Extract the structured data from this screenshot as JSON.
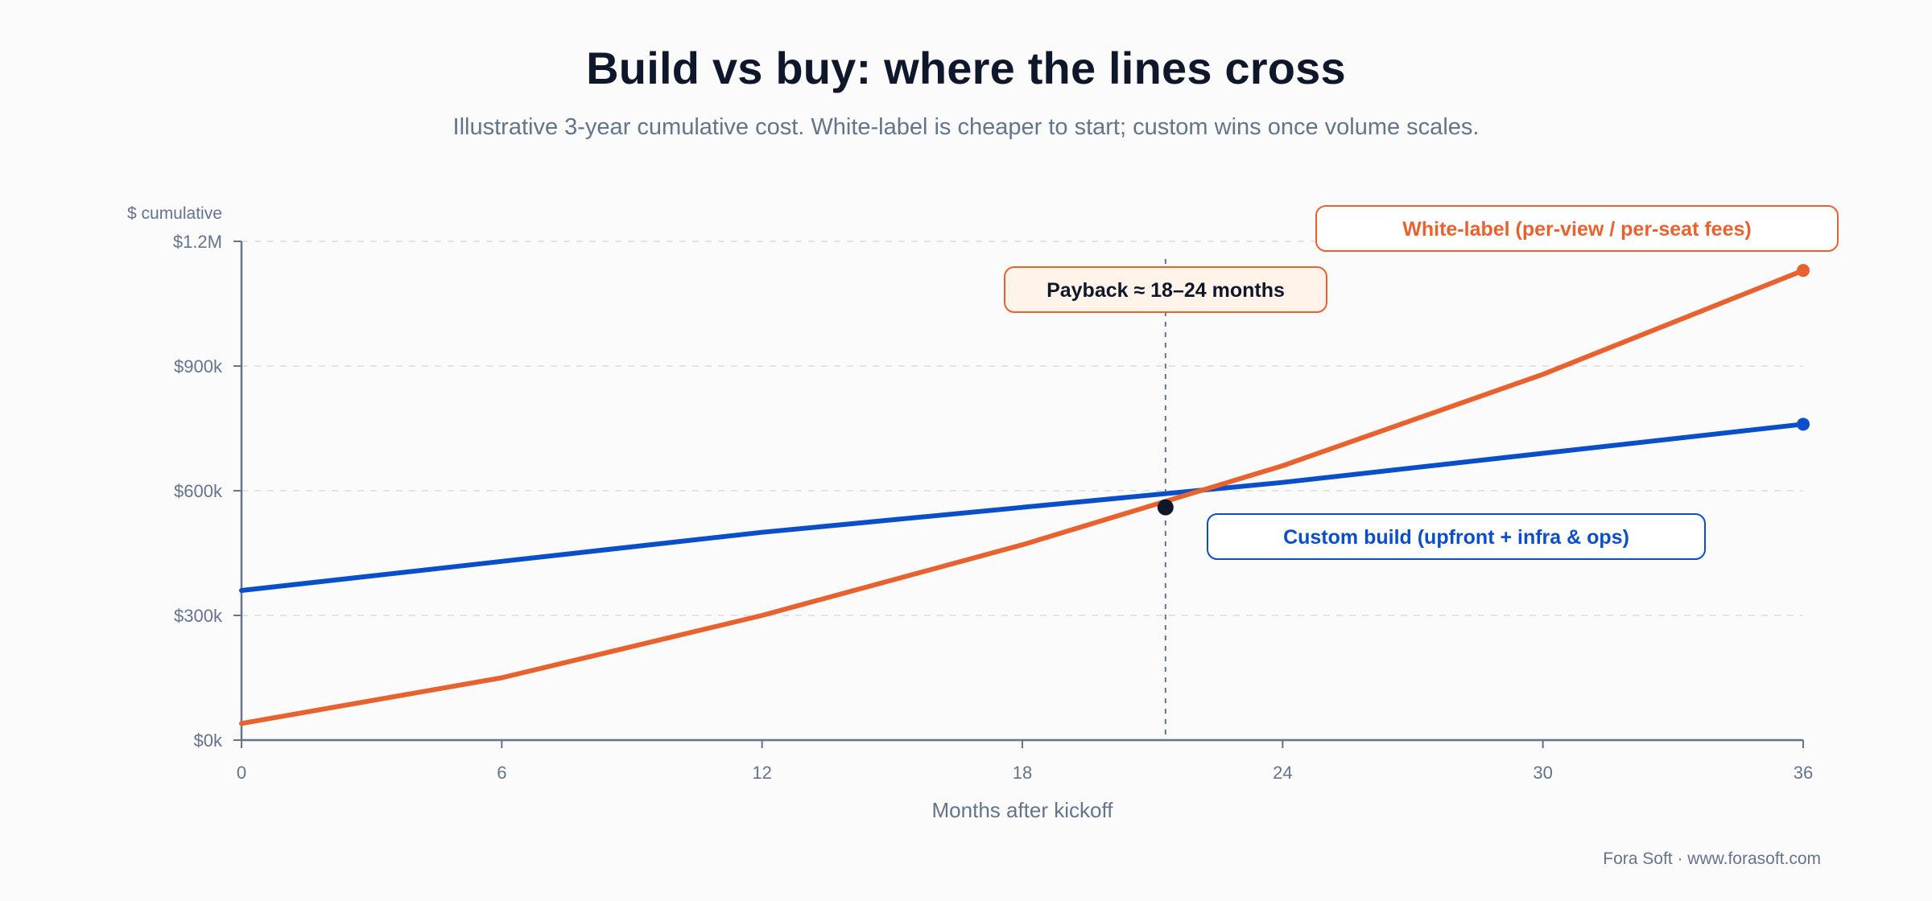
{
  "title": "Build vs buy: where the lines cross",
  "subtitle": "Illustrative 3-year cumulative cost. White-label is cheaper to start; custom wins once volume scales.",
  "footer": "Fora Soft · www.forasoft.com",
  "colors": {
    "custom": "#0a4fc8",
    "white_label": "#e8622f",
    "axis": "#64748b",
    "grid": "#d8dde4",
    "marker": "#0f172a",
    "payback_fill": "#fff3ea"
  },
  "chart_data": {
    "type": "line",
    "xlabel": "Months after kickoff",
    "ylabel": "$ cumulative",
    "xlim": [
      0,
      36
    ],
    "ylim": [
      0,
      1200000
    ],
    "x_ticks": [
      0,
      6,
      12,
      18,
      24,
      30,
      36
    ],
    "x_tick_labels": [
      "0",
      "6",
      "12",
      "18",
      "24",
      "30",
      "36"
    ],
    "y_ticks": [
      0,
      300000,
      600000,
      900000,
      1200000
    ],
    "y_tick_labels": [
      "$0k",
      "$300k",
      "$600k",
      "$900k",
      "$1.2M"
    ],
    "grid": "horizontal dashed",
    "series": [
      {
        "name": "Custom build (upfront + infra & ops)",
        "color_key": "custom",
        "x": [
          0,
          6,
          12,
          18,
          24,
          30,
          36
        ],
        "y": [
          360000,
          430000,
          500000,
          560000,
          620000,
          690000,
          760000
        ]
      },
      {
        "name": "White-label (per-view / per-seat fees)",
        "color_key": "white_label",
        "x": [
          0,
          6,
          12,
          18,
          24,
          30,
          36
        ],
        "y": [
          40000,
          150000,
          300000,
          470000,
          660000,
          880000,
          1130000
        ]
      }
    ],
    "annotations": {
      "payback_label": "Payback ≈ 18–24 months",
      "payback_month": 21.3,
      "marker_point": {
        "x": 21.3,
        "y": 560000
      }
    }
  }
}
